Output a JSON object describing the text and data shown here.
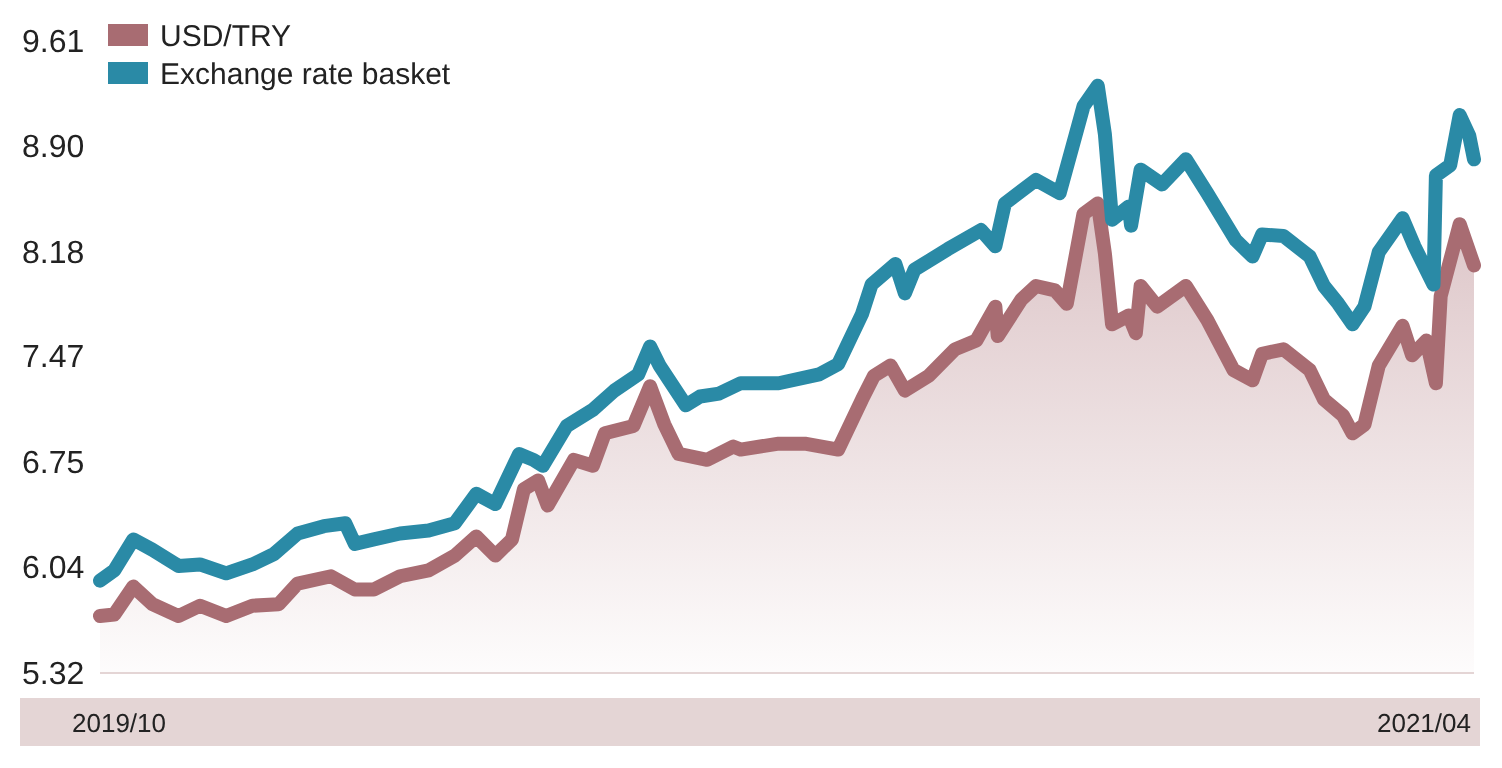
{
  "chart_data": {
    "type": "line",
    "series": [
      {
        "name": "USD/TRY",
        "type": "area",
        "color": "#a86c72",
        "x": [
          "2019-09-23",
          "2019-09-29",
          "2019-10-07",
          "2019-10-15",
          "2019-10-26",
          "2019-11-04",
          "2019-11-15",
          "2019-11-26",
          "2019-12-07",
          "2019-12-15",
          "2019-12-29",
          "2020-01-08",
          "2020-01-16",
          "2020-01-27",
          "2020-02-08",
          "2020-02-19",
          "2020-02-28",
          "2020-03-07",
          "2020-03-14",
          "2020-03-19",
          "2020-03-25",
          "2020-03-29",
          "2020-04-09",
          "2020-04-17",
          "2020-04-22",
          "2020-05-04",
          "2020-05-11",
          "2020-05-17",
          "2020-05-23",
          "2020-06-04",
          "2020-06-15",
          "2020-06-18",
          "2020-07-04",
          "2020-07-15",
          "2020-07-29",
          "2020-08-08",
          "2020-08-13",
          "2020-08-20",
          "2020-08-26",
          "2020-09-05",
          "2020-09-16",
          "2020-09-25",
          "2020-10-03",
          "2020-10-04",
          "2020-10-14",
          "2020-10-20",
          "2020-10-28",
          "2020-11-02",
          "2020-11-09",
          "2020-11-15",
          "2020-11-18",
          "2020-11-21",
          "2020-11-28",
          "2020-12-01",
          "2020-12-03",
          "2020-12-10",
          "2020-12-22",
          "2020-12-31",
          "2021-01-11",
          "2021-01-19",
          "2021-01-23",
          "2021-02-01",
          "2021-02-12",
          "2021-02-18",
          "2021-02-26",
          "2021-03-02",
          "2021-03-07",
          "2021-03-13",
          "2021-03-23",
          "2021-03-27",
          "2021-04-02",
          "2021-04-06",
          "2021-04-08",
          "2021-04-16",
          "2021-04-22"
        ],
        "values": [
          5.7,
          5.71,
          5.9,
          5.78,
          5.7,
          5.77,
          5.7,
          5.77,
          5.78,
          5.92,
          5.97,
          5.88,
          5.88,
          5.97,
          6.01,
          6.11,
          6.24,
          6.11,
          6.22,
          6.56,
          6.62,
          6.45,
          6.76,
          6.72,
          6.94,
          6.99,
          7.26,
          7.0,
          6.8,
          6.76,
          6.85,
          6.83,
          6.87,
          6.87,
          6.83,
          7.17,
          7.33,
          7.4,
          7.23,
          7.33,
          7.51,
          7.57,
          7.8,
          7.6,
          7.85,
          7.94,
          7.91,
          7.82,
          8.43,
          8.5,
          8.16,
          7.68,
          7.74,
          7.62,
          7.94,
          7.8,
          7.94,
          7.71,
          7.37,
          7.3,
          7.48,
          7.51,
          7.37,
          7.17,
          7.06,
          6.94,
          7.0,
          7.4,
          7.67,
          7.47,
          7.57,
          7.28,
          7.87,
          8.36,
          8.08
        ]
      },
      {
        "name": "Exchange rate basket",
        "color": "#2a8aa6",
        "x": [
          "2019-09-23",
          "2019-09-29",
          "2019-10-07",
          "2019-10-15",
          "2019-10-26",
          "2019-11-04",
          "2019-11-15",
          "2019-11-26",
          "2019-12-05",
          "2019-12-15",
          "2019-12-26",
          "2020-01-04",
          "2020-01-08",
          "2020-01-16",
          "2020-01-27",
          "2020-02-08",
          "2020-02-19",
          "2020-02-28",
          "2020-03-07",
          "2020-03-17",
          "2020-03-23",
          "2020-03-27",
          "2020-04-06",
          "2020-04-17",
          "2020-04-26",
          "2020-05-06",
          "2020-05-11",
          "2020-05-15",
          "2020-05-26",
          "2020-06-01",
          "2020-06-09",
          "2020-06-18",
          "2020-07-04",
          "2020-07-21",
          "2020-07-29",
          "2020-08-08",
          "2020-08-12",
          "2020-08-22",
          "2020-08-26",
          "2020-08-30",
          "2020-09-13",
          "2020-09-27",
          "2020-10-03",
          "2020-10-07",
          "2020-10-20",
          "2020-10-30",
          "2020-11-09",
          "2020-11-15",
          "2020-11-18",
          "2020-11-21",
          "2020-11-28",
          "2020-11-29",
          "2020-12-03",
          "2020-12-12",
          "2020-12-22",
          "2020-12-31",
          "2021-01-12",
          "2021-01-19",
          "2021-01-23",
          "2021-02-01",
          "2021-02-12",
          "2021-02-18",
          "2021-02-24",
          "2021-03-02",
          "2021-03-07",
          "2021-03-13",
          "2021-03-23",
          "2021-03-28",
          "2021-04-05",
          "2021-04-06",
          "2021-04-12",
          "2021-04-16",
          "2021-04-20",
          "2021-04-22"
        ],
        "values": [
          5.94,
          6.01,
          6.22,
          6.15,
          6.04,
          6.05,
          5.99,
          6.05,
          6.12,
          6.26,
          6.31,
          6.33,
          6.19,
          6.22,
          6.26,
          6.28,
          6.33,
          6.53,
          6.46,
          6.8,
          6.76,
          6.72,
          6.99,
          7.1,
          7.23,
          7.34,
          7.53,
          7.4,
          7.13,
          7.19,
          7.21,
          7.28,
          7.28,
          7.34,
          7.41,
          7.75,
          7.95,
          8.09,
          7.89,
          8.05,
          8.19,
          8.32,
          8.21,
          8.5,
          8.66,
          8.57,
          9.16,
          9.3,
          8.97,
          8.39,
          8.48,
          8.35,
          8.73,
          8.63,
          8.8,
          8.57,
          8.25,
          8.14,
          8.29,
          8.28,
          8.14,
          7.94,
          7.82,
          7.68,
          7.8,
          8.17,
          8.4,
          8.21,
          7.95,
          8.69,
          8.76,
          9.1,
          8.96,
          8.8
        ]
      }
    ],
    "xlim": [
      "2019-09-23",
      "2021-04-22"
    ],
    "xticks": [
      {
        "value": "2019-10-01",
        "label": "2019/10"
      },
      {
        "value": "2021-04-01",
        "label": "2021/04"
      }
    ],
    "ylim": [
      5.32,
      9.61
    ],
    "yticks": [
      5.32,
      6.04,
      6.75,
      7.47,
      8.18,
      {
        "value": 8.9,
        "label": "8.90"
      },
      9.61
    ],
    "grid": false,
    "legend": "top left",
    "marker": "none",
    "line_style": "solid"
  }
}
